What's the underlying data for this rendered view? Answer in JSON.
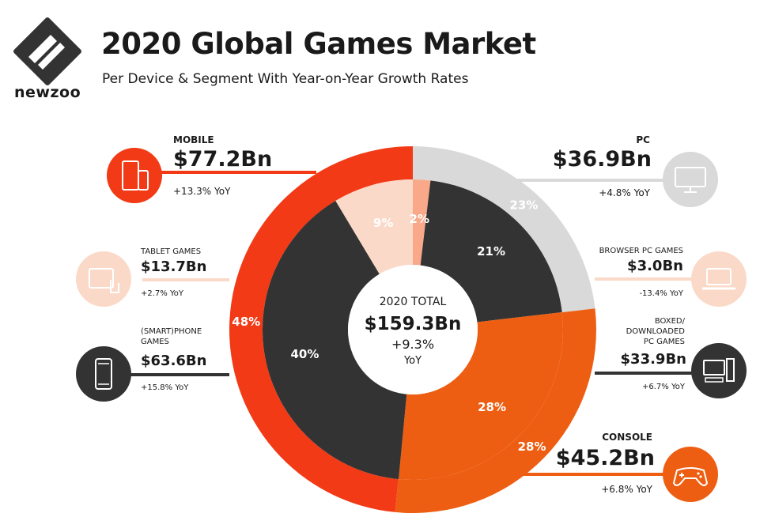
{
  "header": {
    "title": "2020 Global Games Market",
    "subtitle": "Per Device & Segment With Year-on-Year Growth Rates",
    "brand": "newzoo"
  },
  "colors": {
    "mobile": "#f23a16",
    "tablet": "#fbd9c8",
    "tablet_inner": "#f9a889",
    "smartphone": "#333333",
    "pc": "#d9d9d9",
    "browser": "#fbd9c8",
    "boxed": "#333333",
    "console": "#ee5e12",
    "console_inner": "#ee5e12"
  },
  "labels": {
    "mobile": {
      "label": "MOBILE",
      "value": "$77.2Bn",
      "yoy": "+13.3% YoY"
    },
    "tablet": {
      "label": "TABLET GAMES",
      "value": "$13.7Bn",
      "yoy": "+2.7% YoY"
    },
    "smartphone": {
      "label_line1": "(SMART)PHONE",
      "label_line2": "GAMES",
      "value": "$63.6Bn",
      "yoy": "+15.8% YoY"
    },
    "pc": {
      "label": "PC",
      "value": "$36.9Bn",
      "yoy": "+4.8% YoY"
    },
    "browser": {
      "label": "BROWSER PC GAMES",
      "value": "$3.0Bn",
      "yoy": "-13.4% YoY"
    },
    "boxed": {
      "label_line1": "BOXED/",
      "label_line2": "DOWNLOADED",
      "label_line3": "PC GAMES",
      "value": "$33.9Bn",
      "yoy": "+6.7% YoY"
    },
    "console": {
      "label": "CONSOLE",
      "value": "$45.2Bn",
      "yoy": "+6.8% YoY"
    }
  },
  "center": {
    "label": "2020 TOTAL",
    "value": "$159.3Bn",
    "growth": "+9.3%",
    "growth_unit": "YoY"
  },
  "chart_data": {
    "type": "pie",
    "title": "2020 Global Games Market",
    "subtitle": "Per Device & Segment With Year-on-Year Growth Rates",
    "total": {
      "value": 159.3,
      "unit": "$Bn",
      "growth": "+9.3% YoY"
    },
    "outer_ring": [
      {
        "name": "PC",
        "value": 36.9,
        "pct_label": "23%",
        "yoy": "+4.8% YoY",
        "color": "#d9d9d9"
      },
      {
        "name": "CONSOLE",
        "value": 45.2,
        "pct_label": "28%",
        "yoy": "+6.8% YoY",
        "color": "#ee5e12"
      },
      {
        "name": "MOBILE",
        "value": 77.2,
        "pct_label": "48%",
        "yoy": "+13.3% YoY",
        "color": "#f23a16"
      }
    ],
    "inner_ring": [
      {
        "name": "BROWSER PC GAMES",
        "value": 3.0,
        "pct_label": "2%",
        "yoy": "-13.4% YoY",
        "color": "#f9a889"
      },
      {
        "name": "BOXED/DOWNLOADED PC GAMES",
        "value": 33.9,
        "pct_label": "21%",
        "yoy": "+6.7% YoY",
        "color": "#333333"
      },
      {
        "name": "CONSOLE",
        "value": 45.2,
        "pct_label": "28%",
        "yoy": "+6.8% YoY",
        "color": "#ee5e12"
      },
      {
        "name": "(SMART)PHONE GAMES",
        "value": 63.6,
        "pct_label": "40%",
        "yoy": "+15.8% YoY",
        "color": "#333333"
      },
      {
        "name": "TABLET GAMES",
        "value": 13.7,
        "pct_label": "9%",
        "yoy": "+2.7% YoY",
        "color": "#fbd9c8"
      }
    ]
  }
}
